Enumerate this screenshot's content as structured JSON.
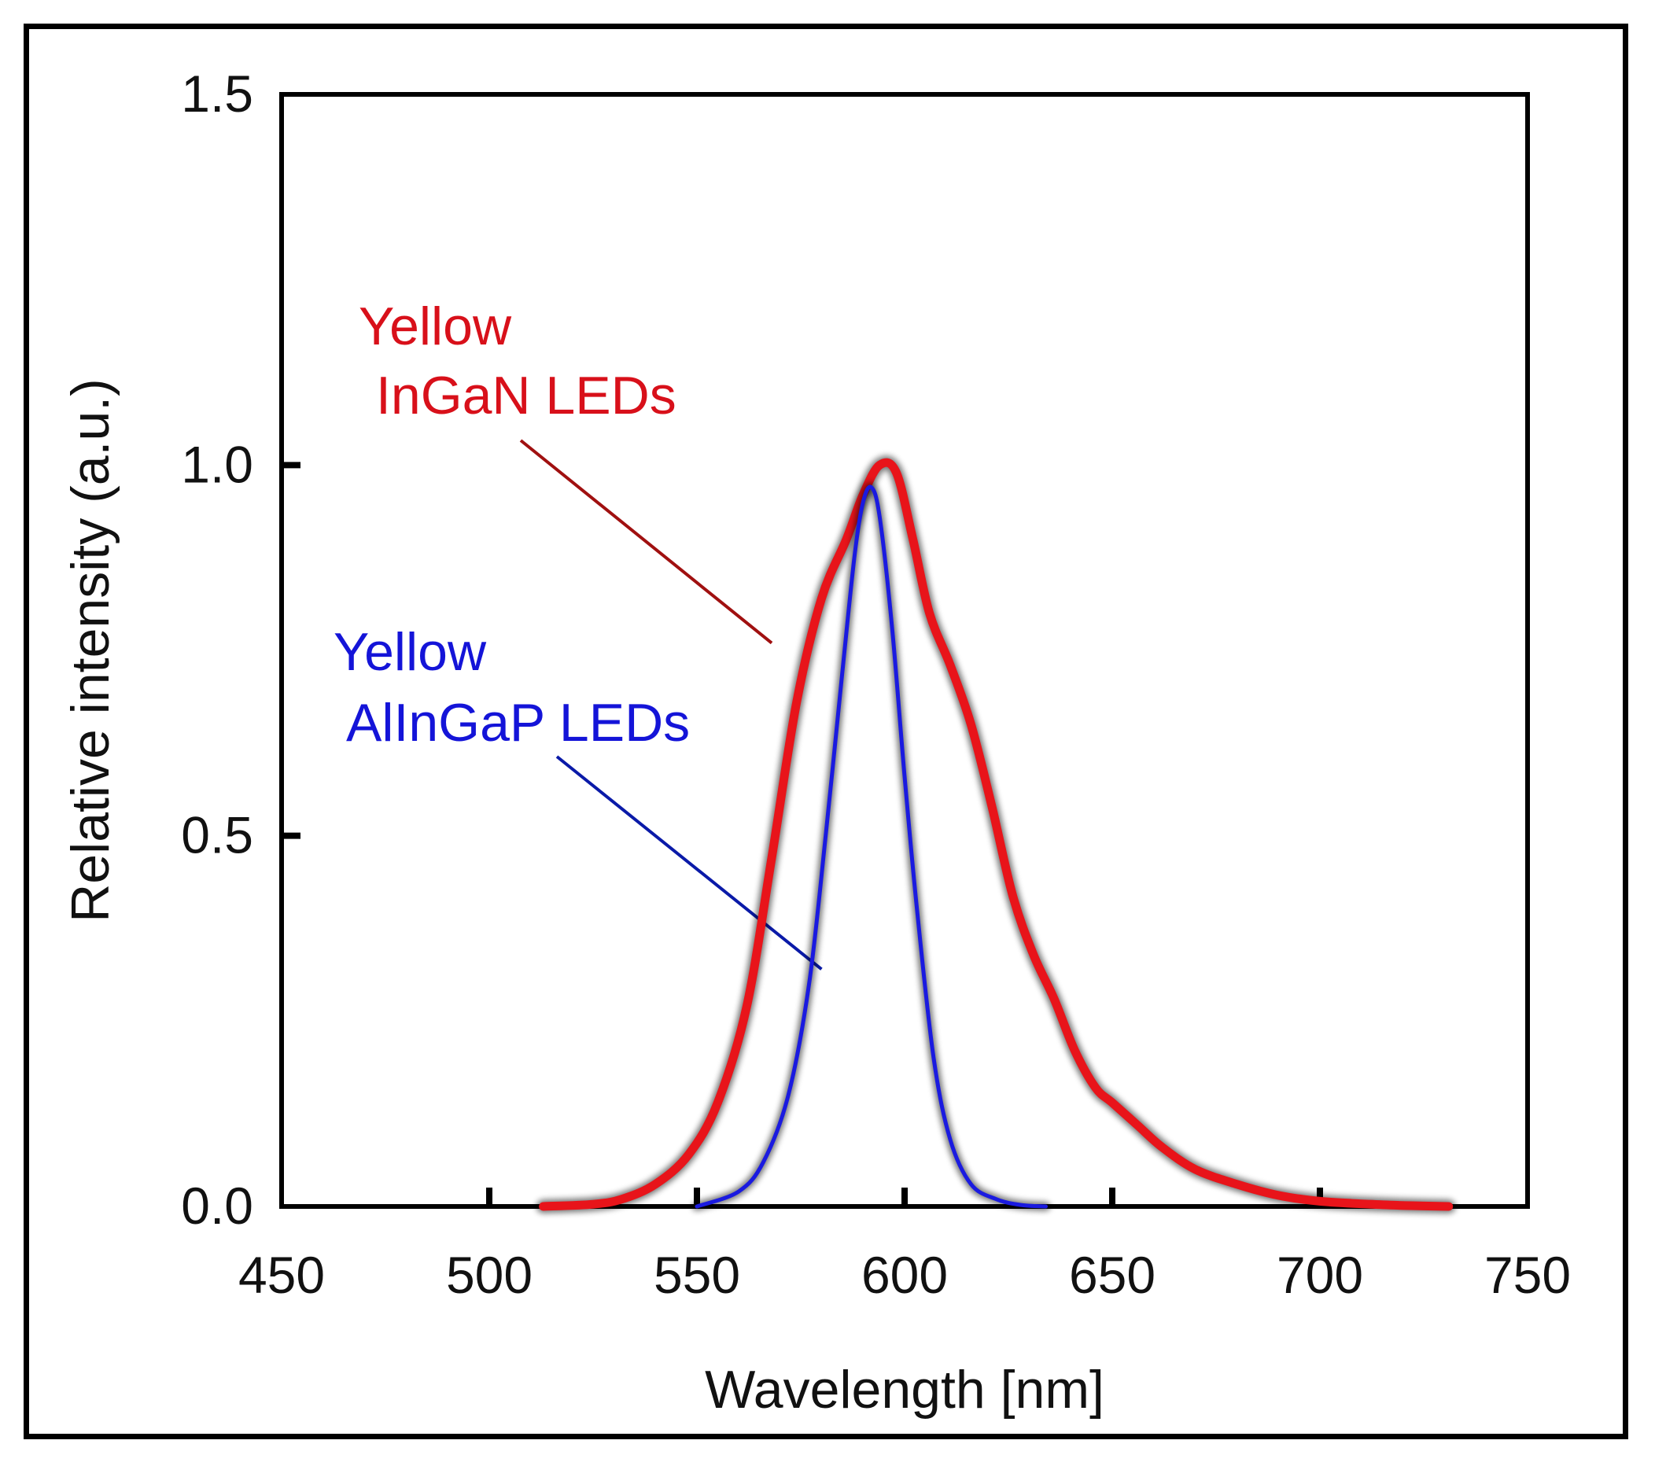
{
  "chart_data": {
    "type": "line",
    "title": "",
    "xlabel": "Wavelength  [nm]",
    "ylabel": "Relative intensity (a.u.)",
    "xlim": [
      450,
      750
    ],
    "ylim": [
      0,
      1.5
    ],
    "xticks": [
      450,
      500,
      550,
      600,
      650,
      700,
      750
    ],
    "xtick_labels": [
      "450",
      "500",
      "550",
      "600",
      "650",
      "700",
      "750"
    ],
    "yticks": [
      0,
      0.5,
      1.0,
      1.5
    ],
    "ytick_labels": [
      "0.0",
      "0.5",
      "1.0",
      "1.5"
    ],
    "grid": false,
    "series": [
      {
        "name": "Yellow InGaN LEDs",
        "color": "#e8141a",
        "x": [
          513,
          525,
          532,
          540,
          548,
          555,
          562,
          568,
          574,
          580,
          586,
          590,
          594,
          598,
          602,
          606,
          611,
          616,
          621,
          626,
          631,
          636,
          641,
          646,
          650,
          656,
          662,
          670,
          680,
          690,
          700,
          712,
          722,
          731
        ],
        "y": [
          0.0,
          0.003,
          0.01,
          0.03,
          0.07,
          0.14,
          0.27,
          0.47,
          0.68,
          0.82,
          0.9,
          0.96,
          1.0,
          0.99,
          0.9,
          0.8,
          0.73,
          0.65,
          0.54,
          0.42,
          0.34,
          0.28,
          0.21,
          0.16,
          0.14,
          0.11,
          0.08,
          0.05,
          0.03,
          0.015,
          0.007,
          0.003,
          0.001,
          0.0
        ]
      },
      {
        "name": "Yellow AlInGaP LEDs",
        "color": "#1a1ae0",
        "x": [
          550,
          560,
          566,
          572,
          577,
          581,
          585,
          588,
          590,
          592,
          594,
          597,
          600,
          603,
          607,
          611,
          616,
          622,
          628,
          634
        ],
        "y": [
          0.0,
          0.02,
          0.06,
          0.15,
          0.3,
          0.5,
          0.72,
          0.88,
          0.95,
          0.97,
          0.93,
          0.78,
          0.58,
          0.4,
          0.2,
          0.09,
          0.03,
          0.01,
          0.002,
          0.0
        ]
      }
    ],
    "annotations": [
      {
        "lines": [
          "Yellow",
          "InGaN LEDs"
        ],
        "color": "#d8101a",
        "pointer_color": "#a01010",
        "points_to": [
          568,
          0.76
        ]
      },
      {
        "lines": [
          "Yellow",
          "AlInGaP LEDs"
        ],
        "color": "#1414d8",
        "pointer_color": "#0a1aa8",
        "points_to": [
          580,
          0.32
        ]
      }
    ]
  }
}
